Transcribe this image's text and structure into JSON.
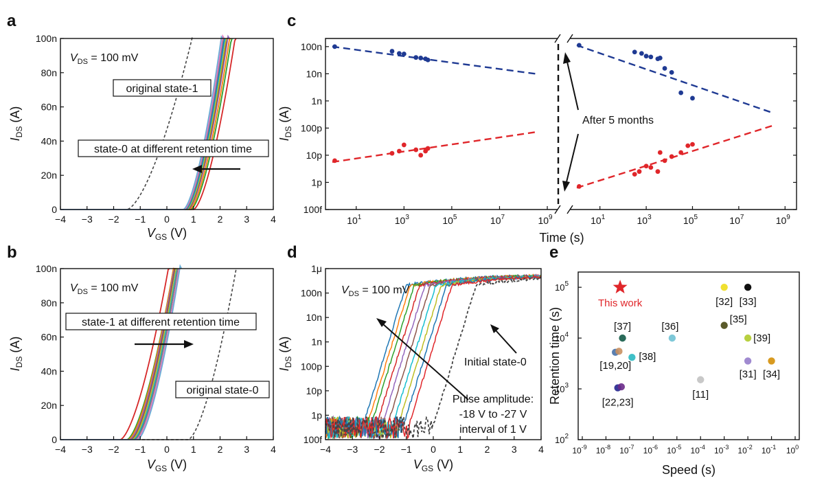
{
  "figure": {
    "panel_labels": [
      "a",
      "b",
      "c",
      "d",
      "e"
    ]
  },
  "colors": {
    "axis": "#111111",
    "blue": "#1f3a93",
    "red": "#e0262a",
    "star": "#e0262a",
    "dashed": "#444444"
  },
  "chart_data": [
    {
      "panel": "a",
      "type": "line",
      "xlabel": "V",
      "xlabel_sub": "GS",
      "xlabel_unit": " (V)",
      "ylabel": "I",
      "ylabel_sub": "DS",
      "ylabel_unit": " (A)",
      "xlim": [
        -4,
        4
      ],
      "ylim": [
        0,
        100
      ],
      "x_ticks": [
        "−4",
        "−3",
        "−2",
        "−1",
        "0",
        "1",
        "2",
        "3",
        "4"
      ],
      "y_ticks": [
        "0",
        "20n",
        "40n",
        "60n",
        "80n",
        "100n"
      ],
      "vds_label": "V",
      "vds_sub": "DS",
      "vds_value": " = 100 mV",
      "annotations": [
        "original state-1",
        "state-0 at different retention time"
      ],
      "arrow_direction": "left",
      "dashed_curve": {
        "name": "original state-1",
        "vth": -1.5,
        "k": 25
      },
      "series": [
        {
          "vth": 1.0,
          "k": 50,
          "color": "#d62728"
        },
        {
          "vth": 0.9,
          "k": 52,
          "color": "#2ca02c"
        },
        {
          "vth": 0.85,
          "k": 53,
          "color": "#ff7f0e"
        },
        {
          "vth": 0.8,
          "k": 54,
          "color": "#9467bd"
        },
        {
          "vth": 0.78,
          "k": 55,
          "color": "#8c564b"
        },
        {
          "vth": 0.75,
          "k": 55,
          "color": "#bcbd22"
        },
        {
          "vth": 0.72,
          "k": 56,
          "color": "#17becf"
        },
        {
          "vth": 0.7,
          "k": 56,
          "color": "#1f77b4"
        },
        {
          "vth": 0.68,
          "k": 57,
          "color": "#7f7f7f"
        },
        {
          "vth": 0.65,
          "k": 57,
          "color": "#e377c2"
        },
        {
          "vth": 0.62,
          "k": 58,
          "color": "#6baed6"
        }
      ]
    },
    {
      "panel": "b",
      "type": "line",
      "xlabel": "V",
      "xlabel_sub": "GS",
      "xlabel_unit": " (V)",
      "ylabel": "I",
      "ylabel_sub": "DS",
      "ylabel_unit": " (A)",
      "xlim": [
        -4,
        4
      ],
      "ylim": [
        0,
        100
      ],
      "x_ticks": [
        "−4",
        "−3",
        "−2",
        "−1",
        "0",
        "1",
        "2",
        "3",
        "4"
      ],
      "y_ticks": [
        "0",
        "20n",
        "40n",
        "60n",
        "80n",
        "100n"
      ],
      "vds_label": "V",
      "vds_sub": "DS",
      "vds_value": " = 100 mV",
      "annotations": [
        "state-1 at different retention time",
        "original state-0"
      ],
      "arrow_direction": "right",
      "dashed_curve": {
        "name": "original state-0",
        "vth": 0.8,
        "k": 40
      },
      "series": [
        {
          "vth": -1.75,
          "k": 40,
          "color": "#d62728"
        },
        {
          "vth": -1.5,
          "k": 42,
          "color": "#2ca02c"
        },
        {
          "vth": -1.45,
          "k": 44,
          "color": "#ff7f0e"
        },
        {
          "vth": -1.4,
          "k": 45,
          "color": "#9467bd"
        },
        {
          "vth": -1.35,
          "k": 46,
          "color": "#8c564b"
        },
        {
          "vth": -1.3,
          "k": 46,
          "color": "#bcbd22"
        },
        {
          "vth": -1.25,
          "k": 47,
          "color": "#17becf"
        },
        {
          "vth": -1.22,
          "k": 47,
          "color": "#1f77b4"
        },
        {
          "vth": -1.2,
          "k": 48,
          "color": "#7f7f7f"
        },
        {
          "vth": -1.15,
          "k": 48,
          "color": "#e377c2"
        },
        {
          "vth": -1.1,
          "k": 49,
          "color": "#6baed6"
        }
      ]
    },
    {
      "panel": "c",
      "type": "scatter",
      "xlabel": "Time (s)",
      "ylabel": "I",
      "ylabel_sub": "DS",
      "ylabel_unit": " (A)",
      "x_ticks": [
        "10",
        "10",
        "10",
        "10",
        "10"
      ],
      "x_tick_exps": [
        "1",
        "3",
        "5",
        "7",
        "9"
      ],
      "y_ticks": [
        "100f",
        "1p",
        "10p",
        "100p",
        "1n",
        "10n",
        "100n"
      ],
      "annotation": "After 5 months",
      "left": {
        "xlim_log": [
          0,
          9.2
        ],
        "ylim_log": [
          -13,
          -6.7
        ],
        "blue_points": [
          [
            0.1,
            -7.0
          ],
          [
            2.5,
            -7.17
          ],
          [
            2.8,
            -7.25
          ],
          [
            3.0,
            -7.27
          ],
          [
            3.5,
            -7.4
          ],
          [
            3.7,
            -7.42
          ],
          [
            3.9,
            -7.45
          ],
          [
            4.0,
            -7.49
          ]
        ],
        "red_points": [
          [
            0.1,
            -11.2
          ],
          [
            2.5,
            -10.93
          ],
          [
            2.8,
            -10.85
          ],
          [
            3.0,
            -10.62
          ],
          [
            3.5,
            -10.8
          ],
          [
            3.7,
            -11.0
          ],
          [
            3.9,
            -10.85
          ],
          [
            4.0,
            -10.75
          ]
        ],
        "blue_fit": [
          [
            0,
            -7.0
          ],
          [
            8.5,
            -8.0
          ]
        ],
        "red_fit": [
          [
            0,
            -11.25
          ],
          [
            8.5,
            -10.15
          ]
        ]
      },
      "right": {
        "xlim_log": [
          0,
          9.2
        ],
        "ylim_log": [
          -13,
          -6.7
        ],
        "blue_points": [
          [
            0.1,
            -6.95
          ],
          [
            2.5,
            -7.2
          ],
          [
            2.8,
            -7.25
          ],
          [
            3.0,
            -7.35
          ],
          [
            3.2,
            -7.38
          ],
          [
            3.5,
            -7.45
          ],
          [
            3.6,
            -7.42
          ],
          [
            3.8,
            -7.8
          ],
          [
            4.1,
            -7.95
          ],
          [
            4.5,
            -8.7
          ],
          [
            5.0,
            -8.9
          ]
        ],
        "red_points": [
          [
            0.1,
            -12.15
          ],
          [
            2.5,
            -11.7
          ],
          [
            2.7,
            -11.6
          ],
          [
            3.0,
            -11.4
          ],
          [
            3.2,
            -11.45
          ],
          [
            3.5,
            -11.6
          ],
          [
            3.6,
            -10.9
          ],
          [
            3.8,
            -11.2
          ],
          [
            4.1,
            -11.05
          ],
          [
            4.5,
            -10.9
          ],
          [
            4.8,
            -10.65
          ],
          [
            5.0,
            -10.6
          ]
        ],
        "blue_fit": [
          [
            0,
            -6.95
          ],
          [
            8.5,
            -9.45
          ]
        ],
        "red_fit": [
          [
            0,
            -12.2
          ],
          [
            8.5,
            -9.9
          ]
        ]
      }
    },
    {
      "panel": "d",
      "type": "line",
      "xlabel": "V",
      "xlabel_sub": "GS",
      "xlabel_unit": " (V)",
      "ylabel": "I",
      "ylabel_sub": "DS",
      "ylabel_unit": " (A)",
      "xlim": [
        -4,
        4
      ],
      "ylim_log": [
        -13,
        -6
      ],
      "x_ticks": [
        "−4",
        "−3",
        "−2",
        "−1",
        "0",
        "1",
        "2",
        "3",
        "4"
      ],
      "y_ticks": [
        "100f",
        "1p",
        "10p",
        "100p",
        "1n",
        "10n",
        "100n",
        "1μ"
      ],
      "vds_label": "V",
      "vds_sub": "DS",
      "vds_value": " = 100 mV",
      "annotations": [
        "Initial state-0",
        "Pulse amplitude:",
        "-18 V to -27 V",
        "interval of 1 V"
      ],
      "dashed_curve": {
        "name": "Initial state-0",
        "von": 0.0
      },
      "series": [
        {
          "von": -2.6,
          "color": "#1f77b4"
        },
        {
          "von": -2.45,
          "color": "#ff7f0e"
        },
        {
          "von": -2.3,
          "color": "#2ca02c"
        },
        {
          "von": -2.1,
          "color": "#d62728"
        },
        {
          "von": -1.9,
          "color": "#9467bd"
        },
        {
          "von": -1.7,
          "color": "#8c564b"
        },
        {
          "von": -1.5,
          "color": "#17becf"
        },
        {
          "von": -1.3,
          "color": "#bcbd22"
        },
        {
          "von": -1.1,
          "color": "#1f77b4"
        },
        {
          "von": -0.9,
          "color": "#e0262a"
        }
      ]
    },
    {
      "panel": "e",
      "type": "scatter",
      "xlabel": "Speed (s)",
      "ylabel": "Retention time (s)",
      "xlim_log": [
        -9,
        0
      ],
      "ylim_log": [
        2,
        5.3
      ],
      "x_ticks": [
        "10",
        "10",
        "10",
        "10",
        "10",
        "10",
        "10",
        "10",
        "10",
        "10"
      ],
      "x_tick_exps": [
        "-9",
        "-8",
        "-7",
        "-6",
        "-5",
        "-4",
        "-3",
        "-2",
        "-1",
        "0"
      ],
      "y_ticks": [
        "10",
        "10",
        "10",
        "10"
      ],
      "y_tick_exps": [
        "2",
        "3",
        "4",
        "5"
      ],
      "this_work": {
        "label": "This work",
        "x": -7.4,
        "y": 5.0,
        "color": "#e0262a"
      },
      "points": [
        {
          "label": "[32]",
          "x": -3.0,
          "y": 5.0,
          "color": "#f0e030"
        },
        {
          "label": "[33]",
          "x": -2.0,
          "y": 5.0,
          "color": "#111111"
        },
        {
          "label": "[37]",
          "x": -7.3,
          "y": 4.0,
          "color": "#2a6b5a"
        },
        {
          "label": "[36]",
          "x": -5.2,
          "y": 4.0,
          "color": "#7ec8d8"
        },
        {
          "label": "[35]",
          "x": -3.0,
          "y": 4.25,
          "color": "#5a5a2a"
        },
        {
          "label": "[39]",
          "x": -2.0,
          "y": 4.0,
          "color": "#b8d040"
        },
        {
          "label": "[19,20]",
          "x": -7.6,
          "y": 3.72,
          "color": "#5a7fb0"
        },
        {
          "label": "[38]",
          "x": -6.9,
          "y": 3.62,
          "color": "#40c0c8"
        },
        {
          "label": "[31]",
          "x": -2.0,
          "y": 3.55,
          "color": "#a08ad0"
        },
        {
          "label": "[34]",
          "x": -1.0,
          "y": 3.55,
          "color": "#d89a20"
        },
        {
          "label": "[11]",
          "x": -4.0,
          "y": 3.18,
          "color": "#c8c8c8"
        },
        {
          "label": "[22,23]",
          "x": -7.5,
          "y": 3.02,
          "color": "#3a3a9a"
        }
      ]
    }
  ]
}
